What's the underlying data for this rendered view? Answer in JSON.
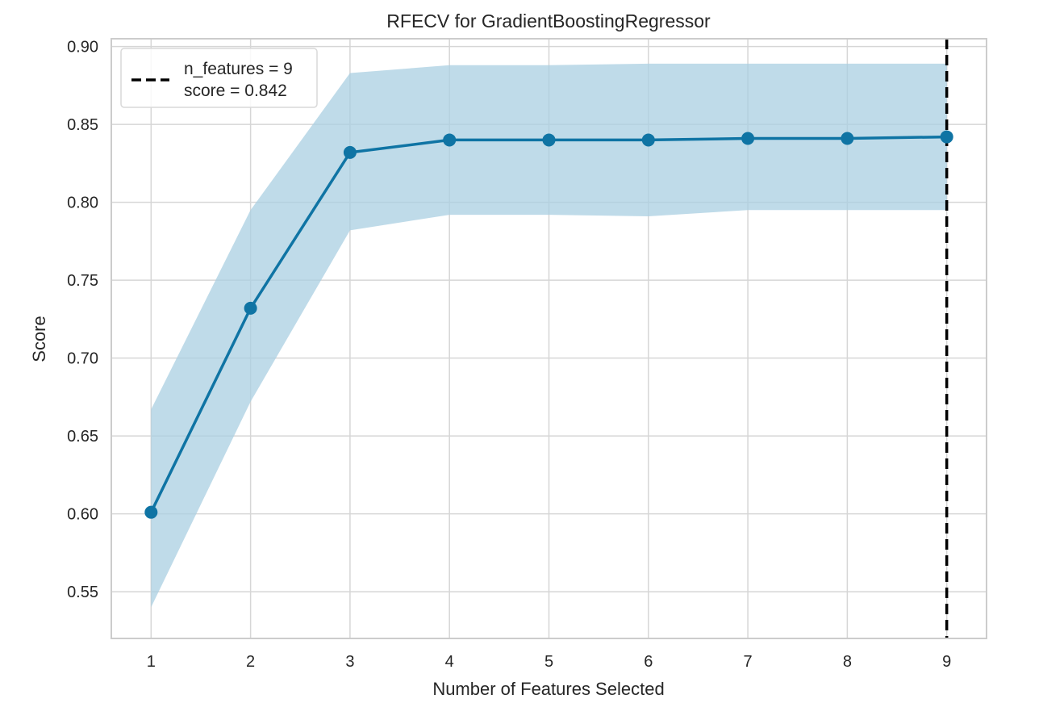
{
  "chart_data": {
    "type": "line",
    "title": "RFECV for GradientBoostingRegressor",
    "xlabel": "Number of Features Selected",
    "ylabel": "Score",
    "x": [
      1,
      2,
      3,
      4,
      5,
      6,
      7,
      8,
      9
    ],
    "series": [
      {
        "values": [
          0.601,
          0.732,
          0.832,
          0.84,
          0.84,
          0.84,
          0.841,
          0.841,
          0.842
        ],
        "band_upper": [
          0.667,
          0.795,
          0.883,
          0.888,
          0.888,
          0.889,
          0.889,
          0.889,
          0.889
        ],
        "band_lower": [
          0.54,
          0.672,
          0.782,
          0.792,
          0.792,
          0.791,
          0.795,
          0.795,
          0.795
        ],
        "color": "#0f74a4",
        "band_color": "#a9cfe1"
      }
    ],
    "x_ticks": [
      "1",
      "2",
      "3",
      "4",
      "5",
      "6",
      "7",
      "8",
      "9"
    ],
    "y_ticks": [
      "0.55",
      "0.60",
      "0.65",
      "0.70",
      "0.75",
      "0.80",
      "0.85",
      "0.90"
    ],
    "xlim": [
      0.6,
      9.4
    ],
    "ylim": [
      0.52,
      0.905
    ],
    "grid": true,
    "vline": {
      "x": 9,
      "color": "#000000",
      "style": "dashed"
    },
    "legend": {
      "placement": "top-left",
      "line1": "n_features = 9",
      "line2": "score = 0.842"
    }
  }
}
